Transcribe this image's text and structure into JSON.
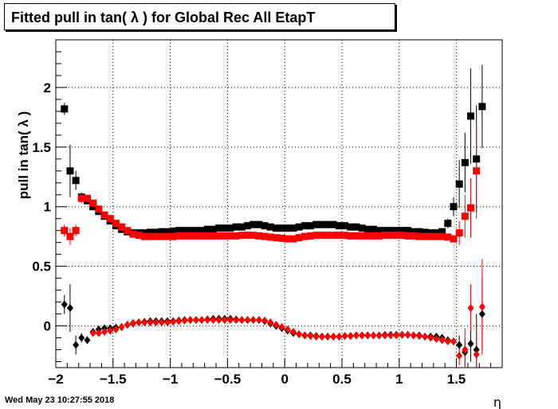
{
  "title": "Fitted pull in tan( λ ) for Global Rec All EtapT",
  "timestamp": "Wed May 23 10:27:55 2018",
  "chart_data": {
    "type": "scatter",
    "title": "Fitted pull in tan( λ ) for Global Rec All EtapT",
    "xlabel": "η",
    "ylabel": "pull in tan( λ )",
    "xlim": [
      -2.0,
      1.9
    ],
    "ylim": [
      -0.35,
      2.4
    ],
    "grid": true,
    "x_ticks": [
      -2,
      -1.5,
      -1,
      -0.5,
      0,
      0.5,
      1,
      1.5
    ],
    "x_tick_labels": [
      "−2",
      "−1.5",
      "−1",
      "−0.5",
      "0",
      "0.5",
      "1",
      "1.5"
    ],
    "y_ticks": [
      0,
      0.5,
      1,
      1.5,
      2
    ],
    "y_tick_labels": [
      "0",
      "0.5",
      "1",
      "1.5",
      "2"
    ],
    "x": [
      -1.925,
      -1.875,
      -1.825,
      -1.775,
      -1.725,
      -1.675,
      -1.625,
      -1.575,
      -1.525,
      -1.475,
      -1.425,
      -1.375,
      -1.325,
      -1.275,
      -1.225,
      -1.175,
      -1.125,
      -1.075,
      -1.025,
      -0.975,
      -0.925,
      -0.875,
      -0.825,
      -0.775,
      -0.725,
      -0.675,
      -0.625,
      -0.575,
      -0.525,
      -0.475,
      -0.425,
      -0.375,
      -0.325,
      -0.275,
      -0.225,
      -0.175,
      -0.125,
      -0.075,
      -0.025,
      0.025,
      0.075,
      0.125,
      0.175,
      0.225,
      0.275,
      0.325,
      0.375,
      0.425,
      0.475,
      0.525,
      0.575,
      0.625,
      0.675,
      0.725,
      0.775,
      0.825,
      0.875,
      0.925,
      0.975,
      1.025,
      1.075,
      1.125,
      1.175,
      1.225,
      1.275,
      1.325,
      1.375,
      1.425,
      1.475,
      1.525,
      1.575,
      1.625,
      1.675,
      1.725
    ],
    "series": [
      {
        "color": "#000000",
        "marker": "square",
        "values": [
          1.82,
          1.3,
          1.22,
          1.08,
          1.05,
          1.0,
          0.96,
          0.92,
          0.88,
          0.84,
          0.81,
          0.79,
          0.78,
          0.78,
          0.78,
          0.785,
          0.785,
          0.79,
          0.79,
          0.795,
          0.8,
          0.8,
          0.8,
          0.8,
          0.8,
          0.81,
          0.81,
          0.82,
          0.82,
          0.82,
          0.83,
          0.83,
          0.84,
          0.85,
          0.85,
          0.84,
          0.83,
          0.82,
          0.82,
          0.82,
          0.82,
          0.83,
          0.84,
          0.84,
          0.85,
          0.85,
          0.85,
          0.85,
          0.84,
          0.84,
          0.83,
          0.83,
          0.82,
          0.81,
          0.81,
          0.8,
          0.8,
          0.8,
          0.8,
          0.8,
          0.8,
          0.79,
          0.79,
          0.785,
          0.78,
          0.78,
          0.79,
          0.86,
          1.0,
          1.19,
          1.37,
          1.76,
          1.4,
          1.84
        ],
        "errors": [
          0.05,
          0.22,
          0.08,
          0.04,
          0.03,
          0.02,
          0.02,
          0.02,
          0.02,
          0.01,
          0.01,
          0.01,
          0.01,
          0.01,
          0.01,
          0.01,
          0.01,
          0.01,
          0.01,
          0.01,
          0.01,
          0.01,
          0.01,
          0.01,
          0.01,
          0.01,
          0.01,
          0.01,
          0.01,
          0.01,
          0.01,
          0.01,
          0.01,
          0.01,
          0.01,
          0.01,
          0.01,
          0.01,
          0.01,
          0.01,
          0.01,
          0.01,
          0.01,
          0.01,
          0.01,
          0.01,
          0.01,
          0.01,
          0.01,
          0.01,
          0.01,
          0.01,
          0.01,
          0.01,
          0.01,
          0.01,
          0.01,
          0.01,
          0.01,
          0.01,
          0.01,
          0.01,
          0.01,
          0.01,
          0.01,
          0.01,
          0.01,
          0.04,
          0.08,
          0.2,
          0.25,
          0.4,
          0.45,
          0.35
        ]
      },
      {
        "color": "#ff0000",
        "marker": "square",
        "values": [
          0.8,
          0.75,
          0.8,
          1.07,
          1.07,
          1.03,
          0.98,
          0.93,
          0.9,
          0.86,
          0.83,
          0.8,
          0.77,
          0.76,
          0.75,
          0.75,
          0.75,
          0.75,
          0.75,
          0.75,
          0.755,
          0.755,
          0.755,
          0.755,
          0.755,
          0.755,
          0.755,
          0.755,
          0.755,
          0.755,
          0.755,
          0.76,
          0.76,
          0.76,
          0.755,
          0.75,
          0.745,
          0.74,
          0.735,
          0.73,
          0.73,
          0.74,
          0.75,
          0.755,
          0.76,
          0.76,
          0.76,
          0.76,
          0.76,
          0.76,
          0.755,
          0.755,
          0.755,
          0.755,
          0.755,
          0.755,
          0.76,
          0.76,
          0.76,
          0.76,
          0.755,
          0.755,
          0.75,
          0.75,
          0.75,
          0.75,
          0.75,
          0.745,
          0.73,
          0.78,
          0.92,
          0.99,
          1.3,
          null
        ],
        "errors": [
          0.05,
          0.07,
          0.05,
          0.04,
          0.03,
          0.02,
          0.02,
          0.02,
          0.02,
          0.01,
          0.01,
          0.01,
          0.01,
          0.01,
          0.01,
          0.01,
          0.01,
          0.01,
          0.01,
          0.01,
          0.01,
          0.01,
          0.01,
          0.01,
          0.01,
          0.01,
          0.01,
          0.01,
          0.01,
          0.01,
          0.01,
          0.01,
          0.01,
          0.01,
          0.01,
          0.01,
          0.01,
          0.01,
          0.01,
          0.01,
          0.01,
          0.01,
          0.01,
          0.01,
          0.01,
          0.01,
          0.01,
          0.01,
          0.01,
          0.01,
          0.01,
          0.01,
          0.01,
          0.01,
          0.01,
          0.01,
          0.01,
          0.01,
          0.01,
          0.01,
          0.01,
          0.01,
          0.01,
          0.01,
          0.01,
          0.01,
          0.01,
          0.02,
          0.03,
          0.1,
          0.18,
          0.25,
          0.4,
          0
        ]
      },
      {
        "color": "#000000",
        "marker": "diamond",
        "values": [
          0.18,
          0.15,
          -0.16,
          -0.1,
          -0.12,
          -0.05,
          -0.03,
          -0.02,
          -0.02,
          -0.015,
          -0.01,
          0.01,
          0.02,
          0.03,
          0.035,
          0.04,
          0.04,
          0.04,
          0.04,
          0.04,
          0.045,
          0.05,
          0.05,
          0.05,
          0.05,
          0.055,
          0.06,
          0.06,
          0.06,
          0.06,
          0.055,
          0.05,
          0.05,
          0.05,
          0.05,
          0.04,
          0.02,
          0.0,
          -0.02,
          -0.04,
          -0.06,
          -0.07,
          -0.08,
          -0.08,
          -0.085,
          -0.09,
          -0.09,
          -0.09,
          -0.09,
          -0.085,
          -0.085,
          -0.08,
          -0.08,
          -0.08,
          -0.08,
          -0.08,
          -0.075,
          -0.075,
          -0.075,
          -0.075,
          -0.075,
          -0.08,
          -0.08,
          -0.09,
          -0.09,
          -0.09,
          -0.1,
          -0.12,
          -0.13,
          -0.16,
          -0.22,
          -0.15,
          -0.2,
          0.1
        ],
        "errors": [
          0.08,
          0.2,
          0.08,
          0.04,
          0.03,
          0.02,
          0.02,
          0.02,
          0.02,
          0.01,
          0.01,
          0.01,
          0.01,
          0.01,
          0.01,
          0.01,
          0.01,
          0.01,
          0.01,
          0.01,
          0.01,
          0.01,
          0.01,
          0.01,
          0.01,
          0.01,
          0.01,
          0.01,
          0.01,
          0.01,
          0.01,
          0.01,
          0.01,
          0.01,
          0.01,
          0.01,
          0.01,
          0.01,
          0.01,
          0.01,
          0.01,
          0.01,
          0.01,
          0.01,
          0.01,
          0.01,
          0.01,
          0.01,
          0.01,
          0.01,
          0.01,
          0.01,
          0.01,
          0.01,
          0.01,
          0.01,
          0.01,
          0.01,
          0.01,
          0.01,
          0.01,
          0.01,
          0.01,
          0.01,
          0.01,
          0.01,
          0.01,
          0.02,
          0.03,
          0.08,
          0.12,
          0.15,
          0.3,
          0.3
        ]
      },
      {
        "color": "#ff0000",
        "marker": "diamond",
        "values": [
          null,
          null,
          null,
          null,
          null,
          -0.06,
          -0.06,
          -0.05,
          -0.04,
          -0.03,
          -0.01,
          0.01,
          0.025,
          0.03,
          0.03,
          0.03,
          0.03,
          0.03,
          0.03,
          0.035,
          0.04,
          0.045,
          0.05,
          0.05,
          0.05,
          0.05,
          0.05,
          0.05,
          0.05,
          0.05,
          0.05,
          0.05,
          0.05,
          0.05,
          0.05,
          0.045,
          0.03,
          0.01,
          -0.01,
          -0.03,
          -0.05,
          -0.07,
          -0.08,
          -0.085,
          -0.09,
          -0.09,
          -0.09,
          -0.09,
          -0.09,
          -0.085,
          -0.085,
          -0.08,
          -0.08,
          -0.08,
          -0.08,
          -0.08,
          -0.08,
          -0.08,
          -0.08,
          -0.075,
          -0.075,
          -0.08,
          -0.085,
          -0.09,
          -0.1,
          -0.11,
          -0.12,
          -0.13,
          -0.13,
          -0.25,
          -0.2,
          0.15,
          -0.24,
          0.16
        ],
        "errors": [
          0,
          0,
          0,
          0,
          0,
          0.02,
          0.02,
          0.02,
          0.02,
          0.01,
          0.01,
          0.01,
          0.01,
          0.01,
          0.01,
          0.01,
          0.01,
          0.01,
          0.01,
          0.01,
          0.01,
          0.01,
          0.01,
          0.01,
          0.01,
          0.01,
          0.01,
          0.01,
          0.01,
          0.01,
          0.01,
          0.01,
          0.01,
          0.01,
          0.01,
          0.01,
          0.01,
          0.01,
          0.01,
          0.01,
          0.01,
          0.01,
          0.01,
          0.01,
          0.01,
          0.01,
          0.01,
          0.01,
          0.01,
          0.01,
          0.01,
          0.01,
          0.01,
          0.01,
          0.01,
          0.01,
          0.01,
          0.01,
          0.01,
          0.01,
          0.01,
          0.01,
          0.01,
          0.01,
          0.01,
          0.01,
          0.01,
          0.02,
          0.03,
          0.08,
          0.18,
          0.2,
          0.3,
          0.4
        ]
      }
    ]
  }
}
